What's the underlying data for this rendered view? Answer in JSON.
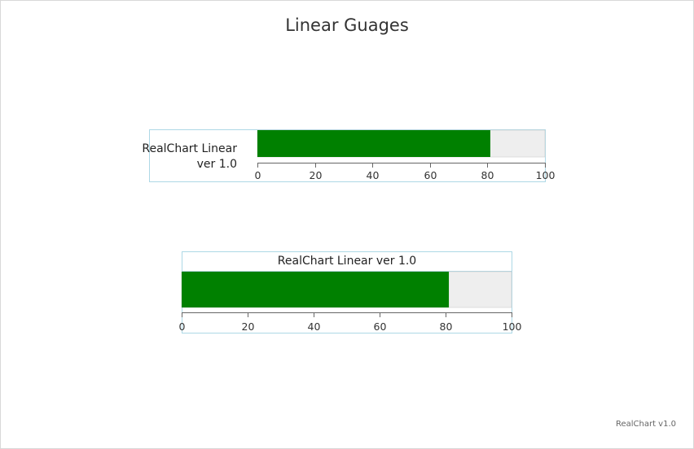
{
  "title": "Linear Guages",
  "credits": "RealChart v1.0",
  "chart_data": {
    "type": "bar",
    "title": "Linear Guages",
    "gauges": [
      {
        "label_lines": [
          "RealChart Linear",
          "ver 1.0"
        ],
        "value": 81,
        "min": 0,
        "max": 100,
        "ticks": [
          0,
          20,
          40,
          60,
          80,
          100
        ],
        "label_placement": "left"
      },
      {
        "label_lines": [
          "RealChart Linear ver 1.0"
        ],
        "value": 81,
        "min": 0,
        "max": 100,
        "ticks": [
          0,
          20,
          40,
          60,
          80,
          100
        ],
        "label_placement": "top"
      }
    ],
    "colors": {
      "bar": "#008000",
      "band": "#eeeeee",
      "frame": "#add8e6",
      "axis": "#666666"
    }
  }
}
